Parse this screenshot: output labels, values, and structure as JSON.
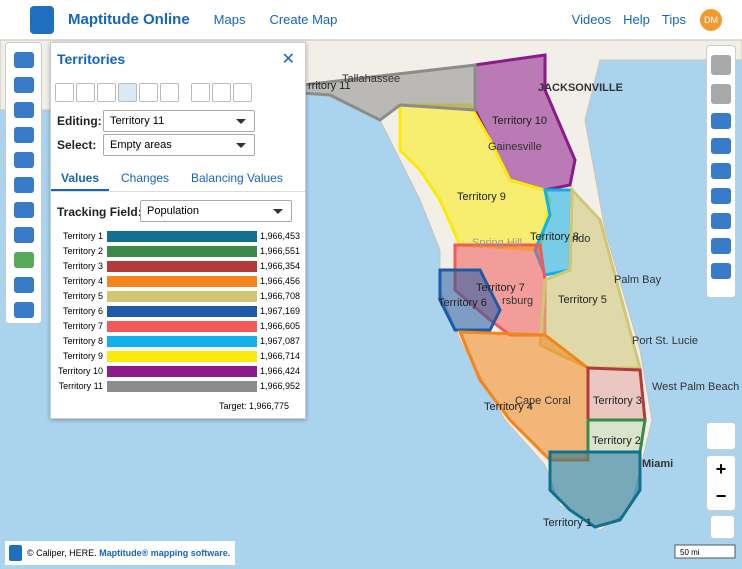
{
  "header": {
    "app_name": "Maptitude Online",
    "nav": [
      "Maps",
      "Create Map"
    ],
    "right_nav": [
      "Videos",
      "Help",
      "Tips"
    ],
    "avatar": "DM"
  },
  "panel": {
    "title": "Territories",
    "editing_label": "Editing:",
    "editing_value": "Territory 11",
    "select_label": "Select:",
    "select_value": "Empty areas",
    "tabs": [
      "Values",
      "Changes",
      "Balancing Values"
    ],
    "tracking_label": "Tracking Field:",
    "tracking_value": "Population",
    "rows": [
      {
        "name": "Territory 1",
        "color": "#12708f",
        "value": "1,966,453"
      },
      {
        "name": "Territory 2",
        "color": "#3b8a4c",
        "value": "1,966,551"
      },
      {
        "name": "Territory 3",
        "color": "#b33a3a",
        "value": "1,966,354"
      },
      {
        "name": "Territory 4",
        "color": "#f2861d",
        "value": "1,966,456"
      },
      {
        "name": "Territory 5",
        "color": "#cfc774",
        "value": "1,966,708"
      },
      {
        "name": "Territory 6",
        "color": "#1f5aa8",
        "value": "1,967,169"
      },
      {
        "name": "Territory 7",
        "color": "#f25a5a",
        "value": "1,966,605"
      },
      {
        "name": "Territory 8",
        "color": "#12b0e8",
        "value": "1,967,087"
      },
      {
        "name": "Territory 9",
        "color": "#fbeb0a",
        "value": "1,966,714"
      },
      {
        "name": "Territory 10",
        "color": "#8b1a8b",
        "value": "1,966,424"
      },
      {
        "name": "Territory 11",
        "color": "#8c8c8c",
        "value": "1,966,952"
      }
    ],
    "target": "Target: 1,966,775"
  },
  "map": {
    "cities": [
      "JACKSONVILLE",
      "Tallahassee",
      "Gainesville",
      "Spring Hill",
      "rsburg",
      "Palm Bay",
      "Port St. Lucie",
      "West Palm Beach",
      "Cape Coral",
      "Miami",
      "ndo"
    ],
    "territory_labels": [
      "Territory 10",
      "Territory 9",
      "Territory 8",
      "Territory 7",
      "Territory 6",
      "Territory 5",
      "Territory 4",
      "Territory 3",
      "Territory 2",
      "Territory 1",
      "rritory 11"
    ]
  },
  "footer": {
    "attribution": "© Caliper, HERE.",
    "brand": "Maptitude® mapping software."
  },
  "scale": "50 mi"
}
